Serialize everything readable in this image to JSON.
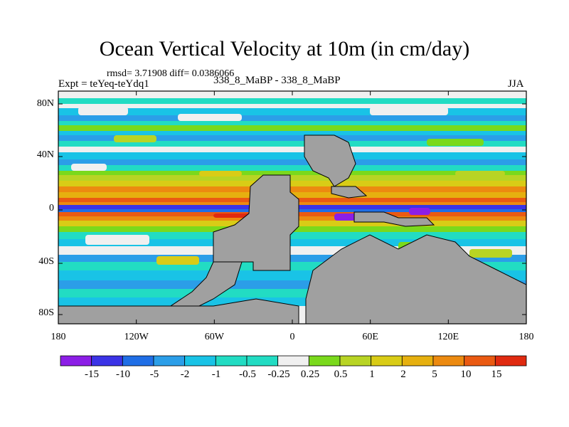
{
  "figure": {
    "title": "Ocean Vertical Velocity at 10m (in cm/day)",
    "stats": "rmsd= 3.71908 diff= 0.0386066",
    "experiment": "Expt = teYeq-teYdq1",
    "difference": "338_8_MaBP - 338_8_MaBP",
    "season": "JJA"
  },
  "axes": {
    "lat_labels": [
      "80N",
      "40N",
      "0",
      "40S",
      "80S"
    ],
    "lon_labels": [
      "180",
      "120W",
      "60W",
      "0",
      "60E",
      "120E",
      "180"
    ]
  },
  "colorbar": {
    "labels": [
      "-15",
      "-10",
      "-5",
      "-2",
      "-1",
      "-0.5",
      "-0.25",
      "0.25",
      "0.5",
      "1",
      "2",
      "5",
      "10",
      "15"
    ],
    "colors": [
      "#8c1ee6",
      "#3b33e6",
      "#1f6ee6",
      "#2b9ee8",
      "#19c3e6",
      "#22dcc3",
      "#f0f0f0",
      "#7ad91c",
      "#b8d424",
      "#d9cc16",
      "#e6b00f",
      "#ec8a10",
      "#ea5a12",
      "#e02a10"
    ]
  },
  "colors": {
    "land": "#a0a0a0",
    "frame": "#000000"
  }
}
